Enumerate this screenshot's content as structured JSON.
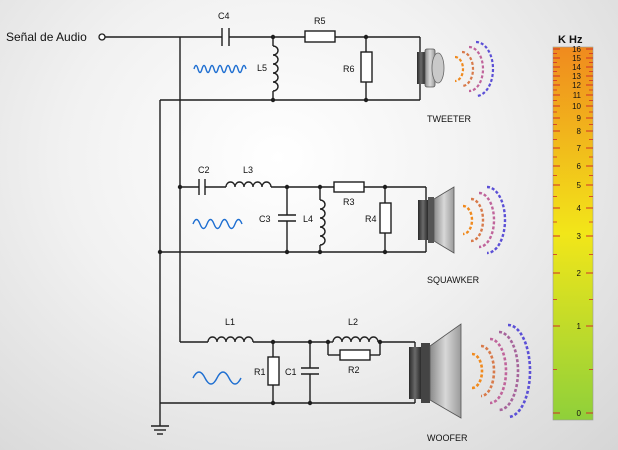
{
  "input_label": "Señal de Audio",
  "components": {
    "c4": "C4",
    "r5": "R5",
    "l5": "L5",
    "r6": "R6",
    "c2": "C2",
    "l3": "L3",
    "c3": "C3",
    "l4": "L4",
    "r3": "R3",
    "r4": "R4",
    "l1": "L1",
    "l2": "L2",
    "r1": "R1",
    "c1": "C1",
    "r2": "R2"
  },
  "speakers": {
    "tweeter": "TWEETER",
    "squawker": "SQUAWKER",
    "woofer": "WOOFER"
  },
  "frequency_scale": {
    "title": "K Hz",
    "labels": [
      "16",
      "15",
      "14",
      "13",
      "12",
      "11",
      "10",
      "9",
      "8",
      "7",
      "6",
      "5",
      "4",
      "3",
      "2",
      "1",
      "0"
    ],
    "colors": {
      "top": "#f08a1e",
      "middle": "#f2e619",
      "bottom": "#8fd03a"
    }
  },
  "wave_colors": {
    "signal": "#1f6fd1",
    "near": "#f08a1e",
    "mid": "#c0649b",
    "far": "#5b4fd6"
  }
}
